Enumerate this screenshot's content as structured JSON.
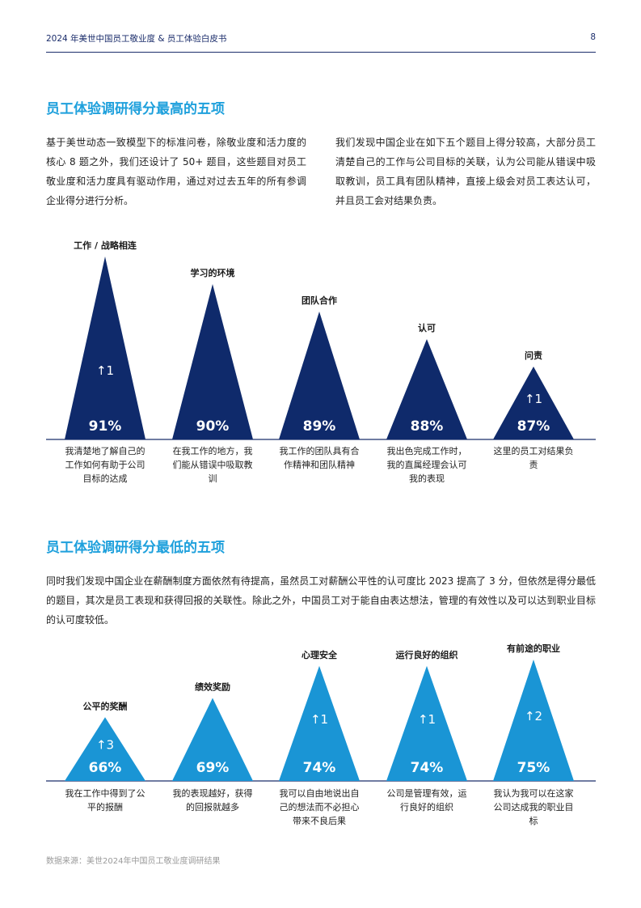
{
  "header": {
    "title": "2024 年美世中国员工敬业度 & 员工体验白皮书",
    "page_number": "8"
  },
  "top_section": {
    "title": "员工体验调研得分最高的五项",
    "para_left": "基于美世动态一致模型下的标准问卷，除敬业度和活力度的核心 8 题之外，我们还设计了 50+ 题目，这些题目对员工敬业度和活力度具有驱动作用，通过对过去五年的所有参调企业得分进行分析。",
    "para_right": "我们发现中国企业在如下五个题目上得分较高，大部分员工清楚自己的工作与公司目标的关联，认为公司能从错误中吸取教训，员工具有团队精神，直接上级会对员工表达认可，并且员工会对结果负责。"
  },
  "bottom_section": {
    "title": "员工体验调研得分最低的五项",
    "para": "同时我们发现中国企业在薪酬制度方面依然有待提高，虽然员工对薪酬公平性的认可度比 2023 提高了 3 分，但依然是得分最低的题目，其次是员工表现和获得回报的关联性。除此之外，中国员工对于能自由表达想法，管理的有效性以及可以达到职业目标的认可度较低。"
  },
  "colors": {
    "top_triangle": "#0f2a6b",
    "bottom_triangle": "#1a95d5",
    "section_title": "#1ea0dc",
    "baseline": "#1b2d6b"
  },
  "chart_data": [
    {
      "type": "bar",
      "name": "top5",
      "categories": [
        "工作 / 战略相连",
        "学习的环境",
        "团队合作",
        "认可",
        "问责"
      ],
      "values": [
        91,
        90,
        89,
        88,
        87
      ],
      "value_labels": [
        "91%",
        "90%",
        "89%",
        "88%",
        "87%"
      ],
      "change": [
        "↑1",
        "",
        "",
        "",
        "↑1"
      ],
      "descriptions": [
        "我清楚地了解自己的工作如何有助于公司目标的达成",
        "在我工作的地方，我们能从错误中吸取教训",
        "我工作的团队具有合作精神和团队精神",
        "我出色完成工作时，我的直属经理会认可我的表现",
        "这里的员工对结果负责"
      ],
      "ylim": [
        86.5,
        91
      ]
    },
    {
      "type": "bar",
      "name": "bottom5",
      "categories": [
        "公平的奖酬",
        "绩效奖励",
        "心理安全",
        "运行良好的组织",
        "有前途的职业"
      ],
      "values": [
        66,
        69,
        74,
        74,
        75
      ],
      "value_labels": [
        "66%",
        "69%",
        "74%",
        "74%",
        "75%"
      ],
      "change": [
        "↑3",
        "",
        "↑1",
        "↑1",
        "↑2"
      ],
      "descriptions": [
        "我在工作中得到了公平的报酬",
        "我的表现越好，获得的回报就越多",
        "我可以自由地说出自己的想法而不必担心带来不良后果",
        "公司是管理有效，运行良好的组织",
        "我认为我可以在这家公司达成我的职业目标"
      ],
      "ylim": [
        63,
        75
      ]
    }
  ],
  "source": "数据来源：美世2024年中国员工敬业度调研结果"
}
